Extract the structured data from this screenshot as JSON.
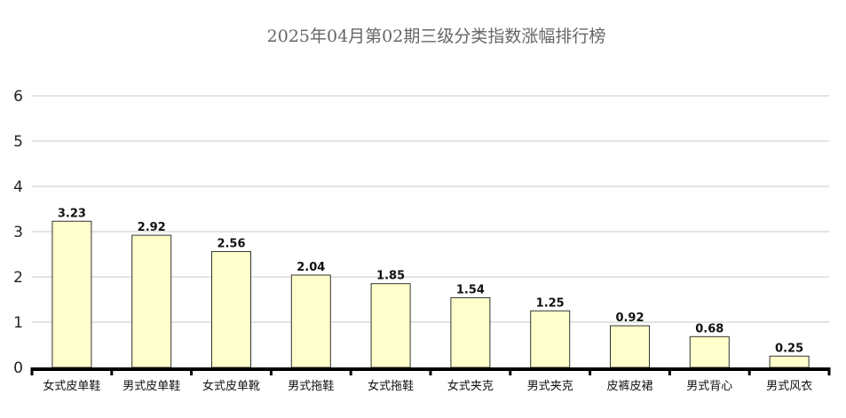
{
  "chart_data": {
    "type": "bar",
    "title": "2025年04月第02期三级分类指数涨幅排行榜",
    "xlabel": "",
    "ylabel": "",
    "categories": [
      "女式皮单鞋",
      "男式皮单鞋",
      "女式皮单靴",
      "男式拖鞋",
      "女式拖鞋",
      "女式夹克",
      "男式夹克",
      "皮裤皮裙",
      "男式背心",
      "男式风衣"
    ],
    "values": [
      3.23,
      2.92,
      2.56,
      2.04,
      1.85,
      1.54,
      1.25,
      0.92,
      0.68,
      0.25
    ],
    "data_labels": [
      "3.23",
      "2.92",
      "2.56",
      "2.04",
      "1.85",
      "1.54",
      "1.25",
      "0.92",
      "0.68",
      "0.25"
    ],
    "ylim": [
      0,
      6
    ],
    "yticks": [
      0,
      1,
      2,
      3,
      4,
      5,
      6
    ],
    "grid": true,
    "legend": "none",
    "colors": {
      "bar_fill": "#ffffcc",
      "bar_stroke": "#333333",
      "grid": "#c8c8c8",
      "axis": "#000000"
    }
  }
}
